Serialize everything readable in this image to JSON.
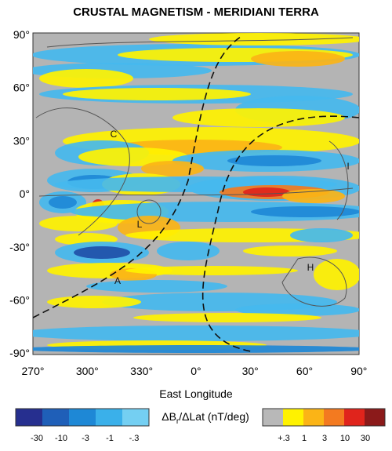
{
  "title": "CRUSTAL MAGNETISM  -  MERIDIANI TERRA",
  "lat_labels": [
    "90°",
    "60°",
    "30°",
    "0°",
    "-30°",
    "-60°",
    "-90°"
  ],
  "lon_labels": [
    "270°",
    "300°",
    "330°",
    "0°",
    "30°",
    "60°",
    "90°"
  ],
  "x_axis_title": "East Longitude",
  "features": [
    "C",
    "L",
    "A",
    "I",
    "H"
  ],
  "colorbar": {
    "negative_labels": [
      "-30",
      "-10",
      "-3",
      "-1",
      "-.3"
    ],
    "positive_labels": [
      "+.3",
      "1",
      "3",
      "10",
      "30"
    ],
    "label": {
      "main": "ΔB",
      "subscript": "r",
      "rest": "/ΔLat (nT/deg)"
    }
  }
}
